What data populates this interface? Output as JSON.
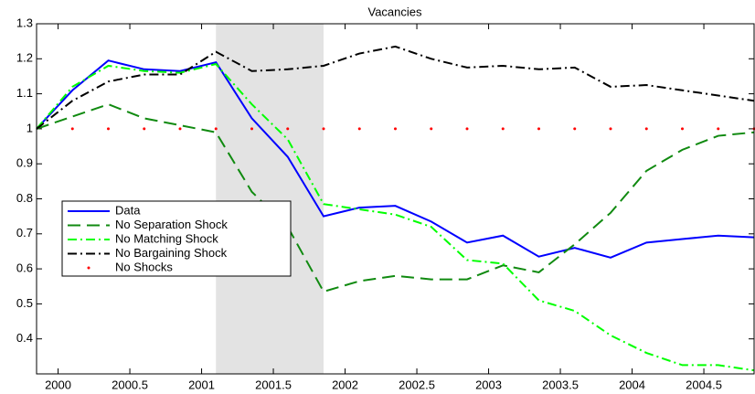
{
  "chart_data": {
    "type": "line",
    "title": "Vacancies",
    "x": [
      1999.85,
      2000.1,
      2000.35,
      2000.6,
      2000.85,
      2001.1,
      2001.35,
      2001.6,
      2001.85,
      2002.1,
      2002.35,
      2002.6,
      2002.85,
      2003.1,
      2003.35,
      2003.6,
      2003.85,
      2004.1,
      2004.35,
      2004.6,
      2004.85
    ],
    "series": [
      {
        "name": "Data",
        "color": "#0000ff",
        "dash": "solid",
        "values": [
          1.0,
          1.11,
          1.195,
          1.17,
          1.165,
          1.19,
          1.03,
          0.92,
          0.75,
          0.775,
          0.78,
          0.735,
          0.675,
          0.695,
          0.635,
          0.66,
          0.632,
          0.675,
          0.685,
          0.695,
          0.69
        ]
      },
      {
        "name": "No Separation Shock",
        "color": "#108a10",
        "dash": "dashed",
        "values": [
          1.0,
          1.035,
          1.07,
          1.03,
          1.01,
          0.99,
          0.82,
          0.72,
          0.535,
          0.565,
          0.58,
          0.57,
          0.57,
          0.61,
          0.59,
          0.67,
          0.76,
          0.88,
          0.94,
          0.98,
          0.99
        ]
      },
      {
        "name": "No Matching Shock",
        "color": "#00ff00",
        "dash": "dashdot",
        "values": [
          1.0,
          1.12,
          1.18,
          1.165,
          1.16,
          1.185,
          1.07,
          0.97,
          0.785,
          0.77,
          0.755,
          0.72,
          0.625,
          0.615,
          0.51,
          0.48,
          0.41,
          0.36,
          0.325,
          0.325,
          0.31
        ]
      },
      {
        "name": "No Bargaining Shock",
        "color": "#000000",
        "dash": "dashdot",
        "values": [
          1.0,
          1.08,
          1.135,
          1.155,
          1.155,
          1.22,
          1.165,
          1.17,
          1.18,
          1.215,
          1.235,
          1.2,
          1.175,
          1.18,
          1.17,
          1.175,
          1.12,
          1.125,
          1.11,
          1.095,
          1.08
        ]
      },
      {
        "name": "No Shocks",
        "color": "#ff0000",
        "dash": "dotted",
        "values": [
          1,
          1,
          1,
          1,
          1,
          1,
          1,
          1,
          1,
          1,
          1,
          1,
          1,
          1,
          1,
          1,
          1,
          1,
          1,
          1,
          1
        ]
      }
    ],
    "shaded": [
      2001.1,
      2001.85
    ],
    "xlim": [
      1999.85,
      2004.85
    ],
    "xticks": [
      2000,
      2000.5,
      2001,
      2001.5,
      2002,
      2002.5,
      2003,
      2003.5,
      2004,
      2004.5
    ],
    "ylim": [
      0.3,
      1.3
    ],
    "yticks": [
      0.4,
      0.5,
      0.6,
      0.7,
      0.8,
      0.9,
      1,
      1.1,
      1.2,
      1.3
    ],
    "legend": "lower left"
  }
}
